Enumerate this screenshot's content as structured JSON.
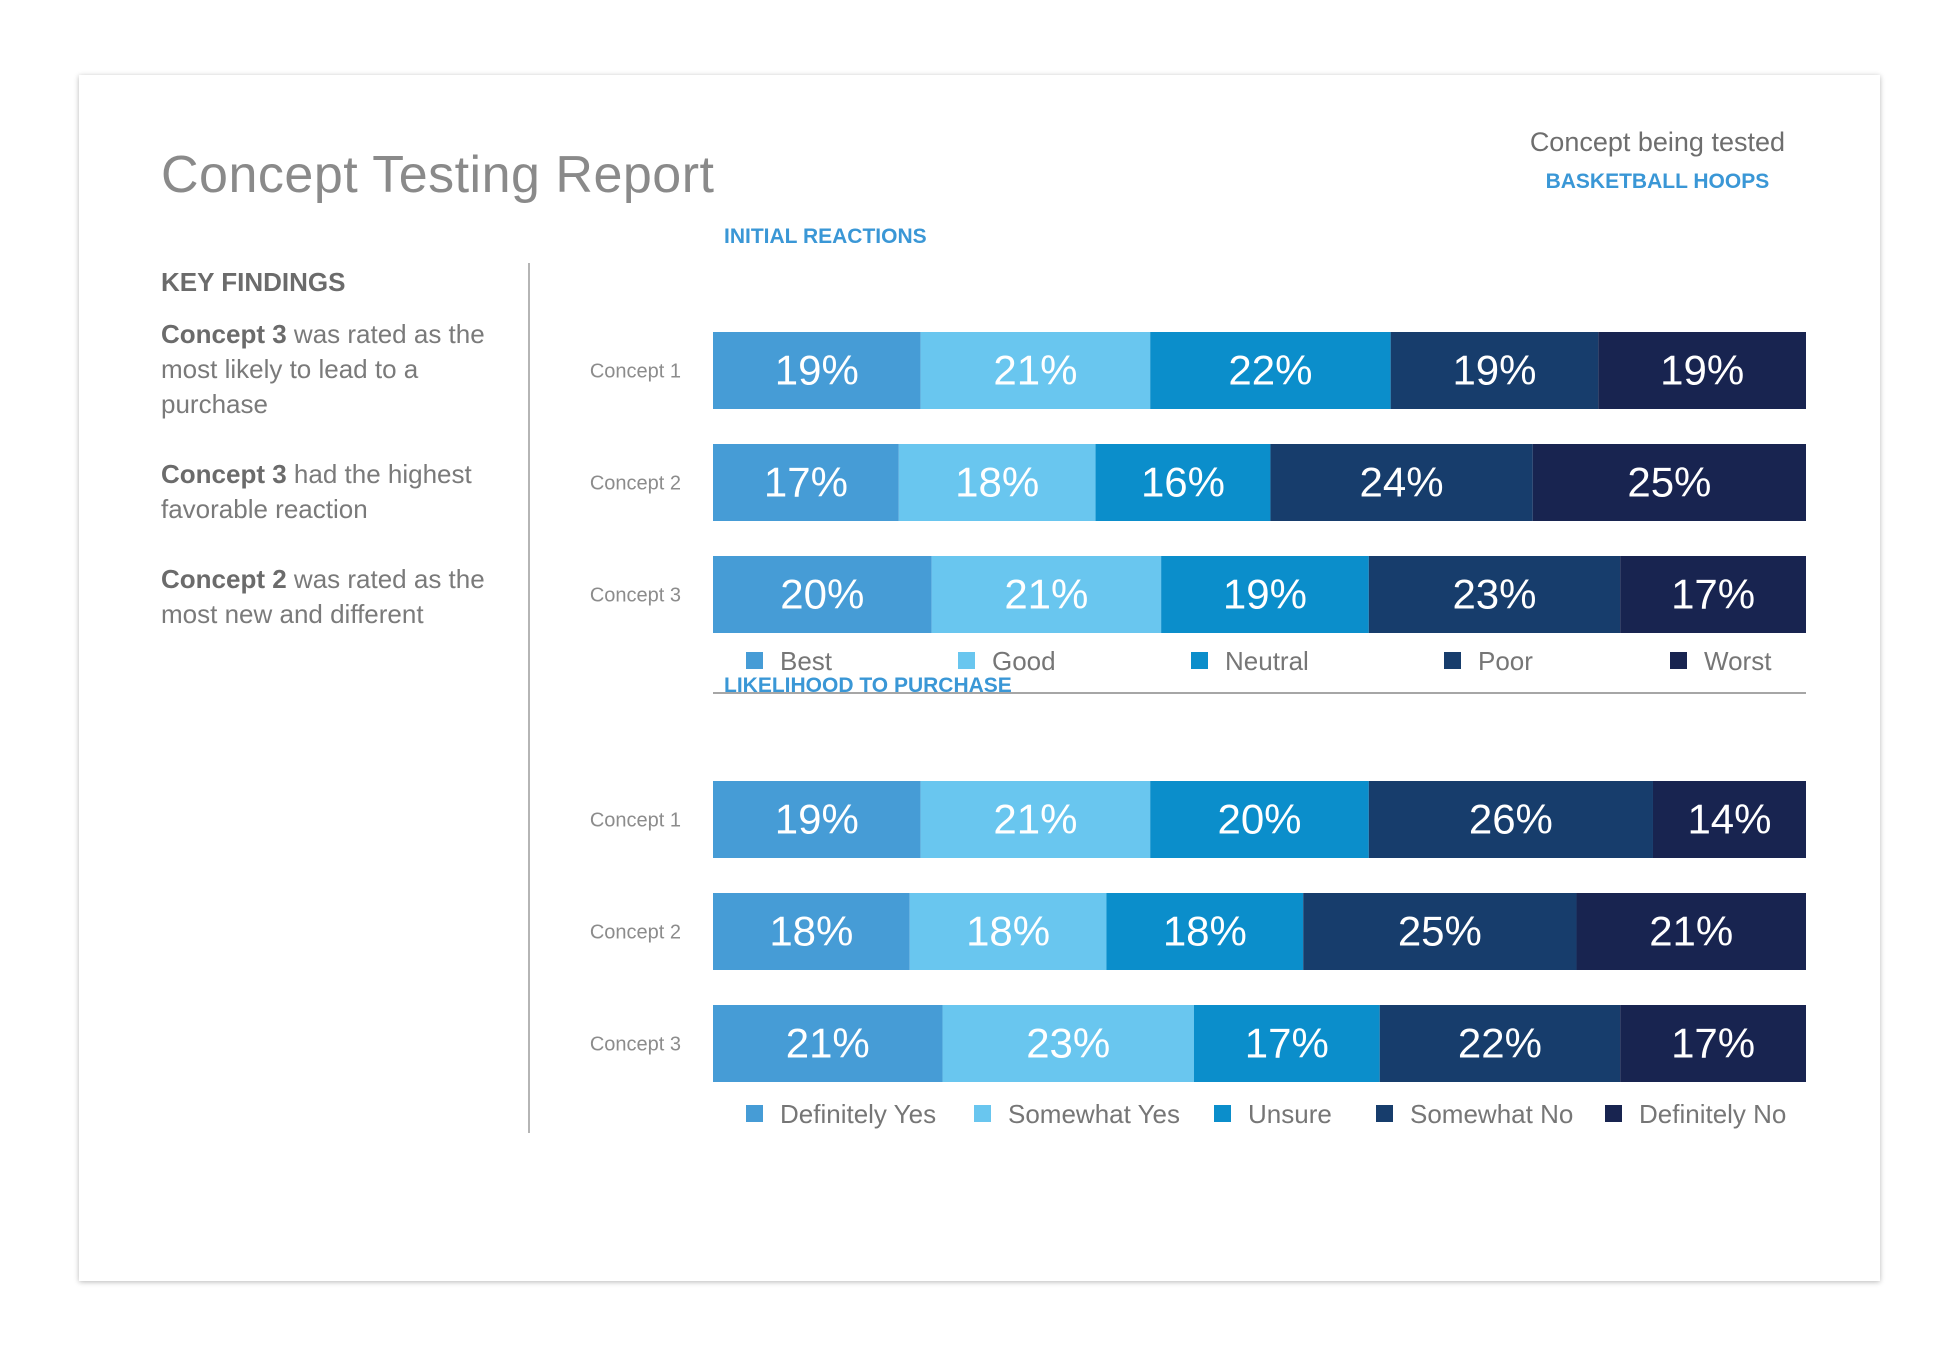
{
  "report": {
    "title": "Concept Testing Report",
    "subject_label": "Concept being tested",
    "subject_name": "BASKETBALL HOOPS"
  },
  "findings": {
    "heading": "KEY FINDINGS",
    "items": [
      {
        "bold": "Concept 3",
        "rest": " was rated as the most likely to lead to a purchase"
      },
      {
        "bold": "Concept 3",
        "rest": " had the highest favorable reaction"
      },
      {
        "bold": "Concept 2",
        "rest": " was rated as the most new and different"
      }
    ]
  },
  "colors": {
    "accent": "#3a97d6",
    "series": [
      "#469cd6",
      "#69c6ef",
      "#0b8ecb",
      "#173d6c",
      "#182450"
    ],
    "rule": "#a6a6a6"
  },
  "chart_data": [
    {
      "type": "bar",
      "stacked": true,
      "orientation": "horizontal",
      "title": "INITIAL REACTIONS",
      "categories": [
        "Concept 1",
        "Concept 2",
        "Concept 3"
      ],
      "value_suffix": "%",
      "series": [
        {
          "name": "Best",
          "values": [
            19,
            17,
            20
          ]
        },
        {
          "name": "Good",
          "values": [
            21,
            18,
            21
          ]
        },
        {
          "name": "Neutral",
          "values": [
            22,
            16,
            19
          ]
        },
        {
          "name": "Poor",
          "values": [
            19,
            24,
            23
          ]
        },
        {
          "name": "Worst",
          "values": [
            19,
            25,
            17
          ]
        }
      ],
      "legend": "bottom"
    },
    {
      "type": "bar",
      "stacked": true,
      "orientation": "horizontal",
      "title": "LIKELIHOOD TO PURCHASE",
      "categories": [
        "Concept 1",
        "Concept 2",
        "Concept 3"
      ],
      "value_suffix": "%",
      "series": [
        {
          "name": "Definitely Yes",
          "values": [
            19,
            18,
            21
          ]
        },
        {
          "name": "Somewhat Yes",
          "values": [
            21,
            18,
            23
          ]
        },
        {
          "name": "Unsure",
          "values": [
            20,
            18,
            17
          ]
        },
        {
          "name": "Somewhat No",
          "values": [
            26,
            25,
            22
          ]
        },
        {
          "name": "Definitely No",
          "values": [
            14,
            21,
            17
          ]
        }
      ],
      "legend": "bottom"
    }
  ]
}
